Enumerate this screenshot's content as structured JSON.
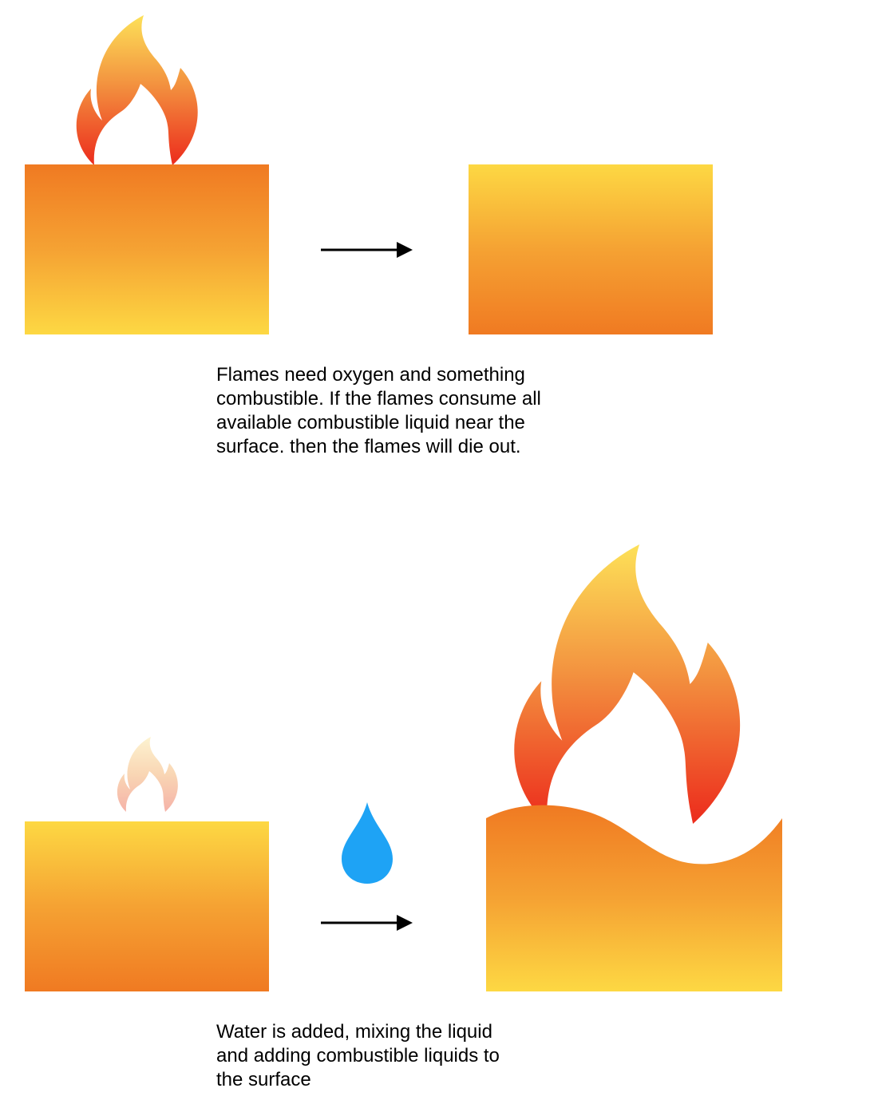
{
  "colors": {
    "liquid_light": "#FDD843",
    "liquid_mid": "#F5A233",
    "liquid_dark": "#F07A22",
    "flame_top": "#FDE158",
    "flame_mid": "#F39440",
    "flame_bottom": "#EC2B1C",
    "water_drop": "#1EA3F5",
    "arrow": "#000000",
    "background": "#FFFFFF"
  },
  "icons": {
    "flame": "flame-icon",
    "faint_flame": "faint-flame-icon",
    "large_flame": "large-flame-icon",
    "water_drop": "water-drop-icon",
    "arrow": "right-arrow-icon"
  },
  "captions": {
    "top": {
      "lines": [
        "Flames need oxygen and something",
        "combustible. If the flames consume all",
        "available combustible liquid near the",
        "surface. then the flames will die out."
      ]
    },
    "bottom": {
      "lines": [
        "Water is added, mixing the liquid",
        "and adding combustible liquids to",
        "the surface"
      ]
    }
  }
}
